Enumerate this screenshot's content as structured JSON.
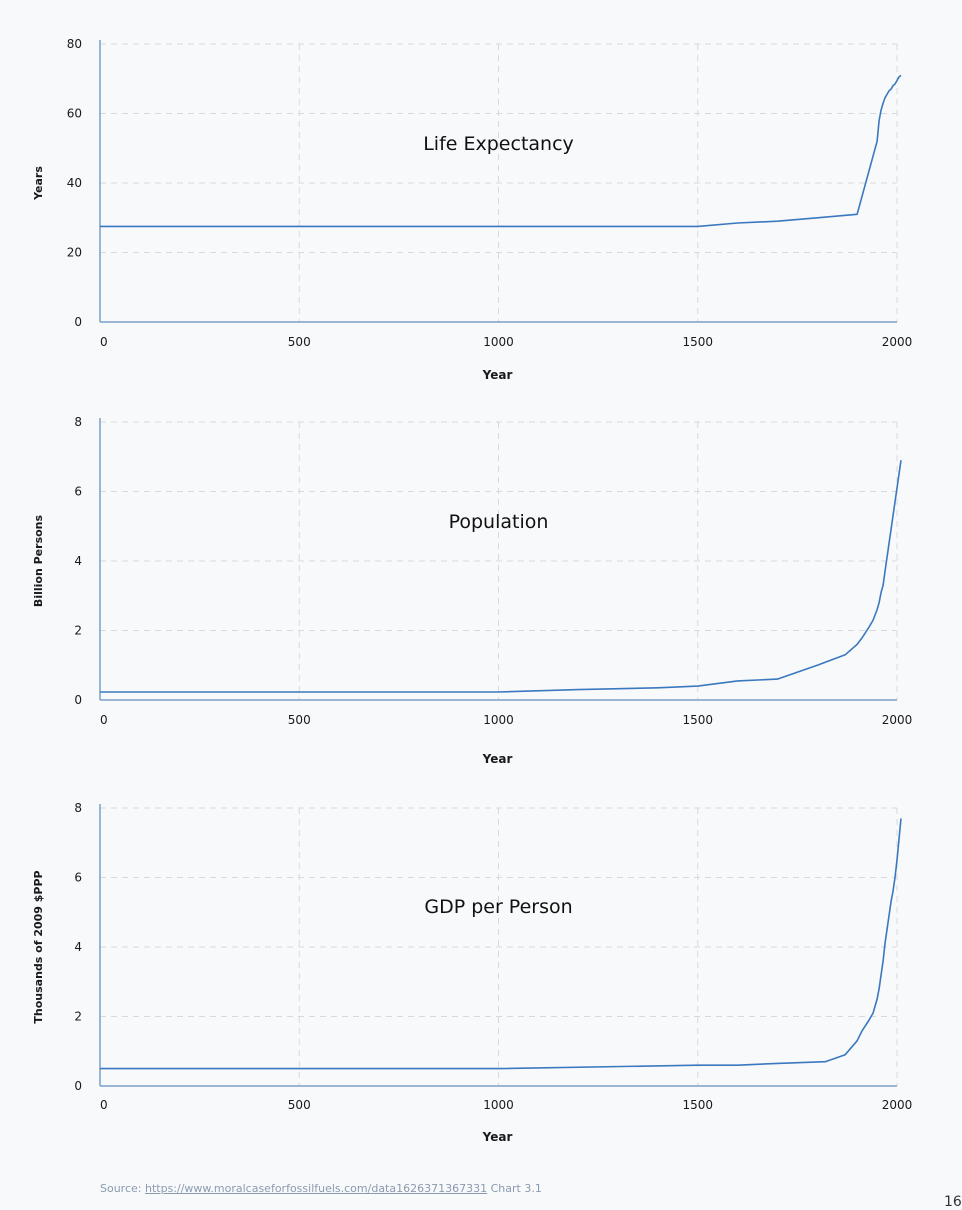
{
  "chart_data": [
    {
      "type": "line",
      "title": "Life Expectancy",
      "xlabel": "Year",
      "ylabel": "Years",
      "xlim": [
        0,
        2000
      ],
      "ylim": [
        0,
        80
      ],
      "xticks": [
        0,
        500,
        1000,
        1500,
        2000
      ],
      "yticks": [
        0,
        20,
        40,
        60,
        80
      ],
      "grid": true,
      "series": [
        {
          "x": [
            0,
            1500,
            1600,
            1700,
            1800,
            1900,
            1950,
            1955,
            1960,
            1965,
            1970,
            1975,
            1980,
            1985,
            1990,
            1995,
            2000,
            2005,
            2010
          ],
          "y": [
            27.5,
            27.5,
            28.5,
            29,
            30,
            31,
            52,
            58,
            61,
            63,
            64.5,
            65.5,
            66.5,
            67,
            68,
            68.5,
            69.5,
            70.5,
            71
          ]
        }
      ]
    },
    {
      "type": "line",
      "title": "Population",
      "xlabel": "Year",
      "ylabel": "Billion Persons",
      "xlim": [
        0,
        2000
      ],
      "ylim": [
        0,
        8
      ],
      "xticks": [
        0,
        500,
        1000,
        1500,
        2000
      ],
      "yticks": [
        0,
        2,
        4,
        6,
        8
      ],
      "grid": true,
      "series": [
        {
          "x": [
            0,
            1000,
            1200,
            1400,
            1500,
            1600,
            1700,
            1800,
            1870,
            1900,
            1913,
            1930,
            1940,
            1950,
            1955,
            1960,
            1965,
            1970,
            1975,
            1980,
            1985,
            1990,
            1995,
            2000,
            2005,
            2010
          ],
          "y": [
            0.23,
            0.23,
            0.3,
            0.35,
            0.4,
            0.55,
            0.6,
            1.0,
            1.3,
            1.6,
            1.8,
            2.1,
            2.3,
            2.6,
            2.8,
            3.1,
            3.3,
            3.7,
            4.1,
            4.5,
            4.9,
            5.3,
            5.7,
            6.1,
            6.5,
            6.9
          ]
        }
      ]
    },
    {
      "type": "line",
      "title": "GDP per Person",
      "xlabel": "Year",
      "ylabel": "Thousands of 2009 $PPP",
      "xlim": [
        0,
        2000
      ],
      "ylim": [
        0,
        8
      ],
      "xticks": [
        0,
        500,
        1000,
        1500,
        2000
      ],
      "yticks": [
        0,
        2,
        4,
        6,
        8
      ],
      "grid": true,
      "series": [
        {
          "x": [
            0,
            1000,
            1500,
            1600,
            1700,
            1820,
            1870,
            1900,
            1913,
            1930,
            1940,
            1950,
            1955,
            1960,
            1965,
            1970,
            1975,
            1980,
            1985,
            1990,
            1995,
            2000,
            2005,
            2010
          ],
          "y": [
            0.5,
            0.5,
            0.6,
            0.6,
            0.65,
            0.7,
            0.9,
            1.3,
            1.6,
            1.9,
            2.1,
            2.5,
            2.8,
            3.2,
            3.6,
            4.1,
            4.5,
            4.9,
            5.3,
            5.6,
            6.0,
            6.5,
            7.1,
            7.7
          ]
        }
      ]
    }
  ],
  "source": {
    "prefix": "Source: ",
    "link": "https://www.moralcaseforfossilfuels.com/data1626371367331",
    "suffix": " Chart 3.1"
  },
  "page_number": "16"
}
